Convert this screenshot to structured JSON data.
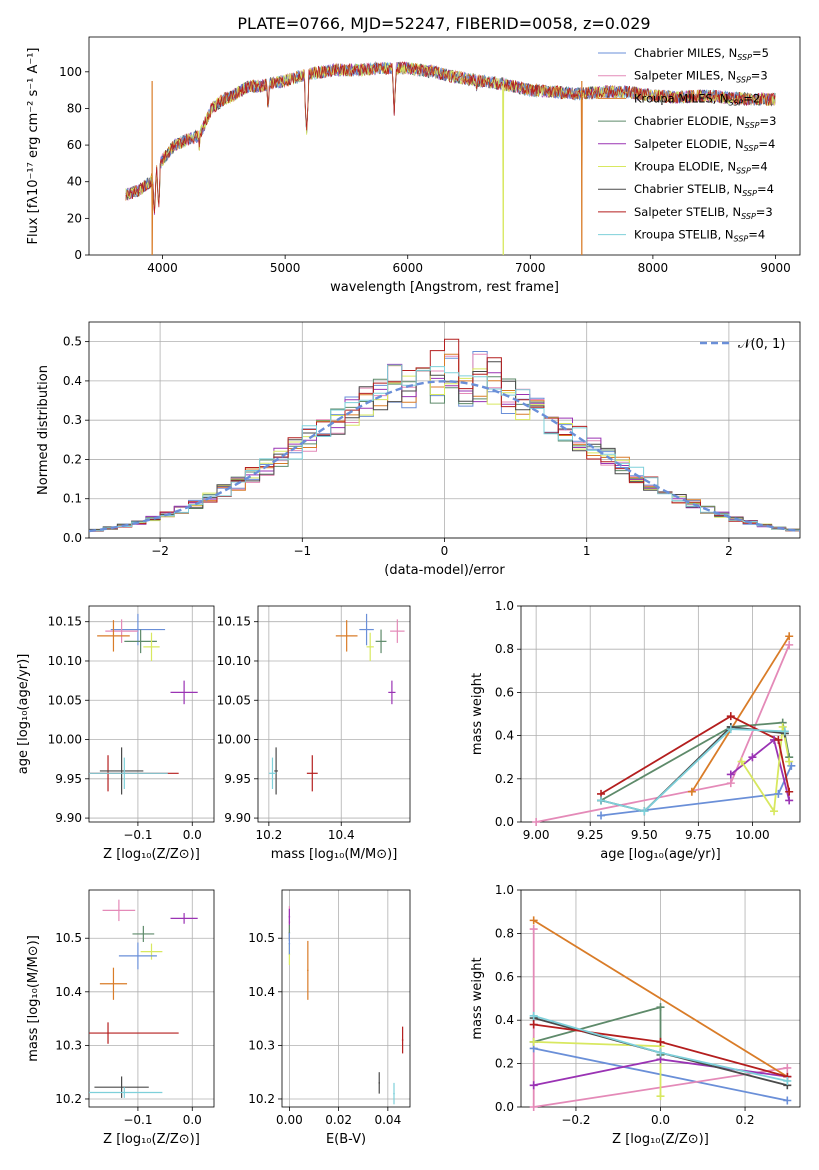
{
  "chart_data": [
    {
      "id": "spectrum",
      "type": "line",
      "title": "PLATE=0766, MJD=52247, FIBERID=0058, z=0.029",
      "xlabel": "wavelength [Angstrom, rest frame]",
      "ylabel": "Flux [fλ10⁻¹⁷ erg cm⁻² s⁻¹ A⁻¹]",
      "xlim": [
        3400,
        9200
      ],
      "ylim": [
        0,
        119
      ],
      "xticks": [
        4000,
        5000,
        6000,
        7000,
        8000,
        9000
      ],
      "yticks": [
        0,
        20,
        40,
        60,
        80,
        100
      ],
      "grid": false,
      "legend": "top-right",
      "legend_entries": [
        {
          "label": "Chabrier MILES, N",
          "sub": "SSP",
          "suffix": "=5",
          "color": "#6a8fd8"
        },
        {
          "label": "Salpeter MILES, N",
          "sub": "SSP",
          "suffix": "=3",
          "color": "#e48ab8"
        },
        {
          "label": "Kroupa MILES, N",
          "sub": "SSP",
          "suffix": "=2",
          "color": "#d97c28"
        },
        {
          "label": "Chabrier ELODIE, N",
          "sub": "SSP",
          "suffix": "=3",
          "color": "#5e8a6a"
        },
        {
          "label": "Salpeter ELODIE, N",
          "sub": "SSP",
          "suffix": "=4",
          "color": "#9a33b4"
        },
        {
          "label": "Kroupa ELODIE, N",
          "sub": "SSP",
          "suffix": "=4",
          "color": "#d8e860"
        },
        {
          "label": "Chabrier STELIB, N",
          "sub": "SSP",
          "suffix": "=4",
          "color": "#4a4a4a"
        },
        {
          "label": "Salpeter STELIB, N",
          "sub": "SSP",
          "suffix": "=3",
          "color": "#b41e1e"
        },
        {
          "label": "Kroupa STELIB, N",
          "sub": "SSP",
          "suffix": "=4",
          "color": "#7ed0da"
        }
      ],
      "continuum": {
        "x": [
          3700,
          3800,
          3900,
          4000,
          4100,
          4200,
          4300,
          4400,
          4500,
          4600,
          4700,
          4800,
          4900,
          5000,
          5200,
          5400,
          5600,
          5800,
          6000,
          6200,
          6400,
          6600,
          6800,
          7000,
          7200,
          7400,
          7600,
          7800,
          8000,
          8200,
          8400,
          8600,
          8800,
          9000
        ],
        "y": [
          33,
          35,
          40,
          52,
          60,
          63,
          65,
          80,
          85,
          88,
          92,
          92,
          94,
          95,
          99,
          101,
          101,
          102,
          102,
          100,
          97,
          95,
          93,
          90,
          89,
          88,
          89,
          89,
          87,
          86,
          87,
          86,
          85,
          85
        ]
      },
      "absorption_features": [
        {
          "x": 3933,
          "y": 22
        },
        {
          "x": 3968,
          "y": 25
        },
        {
          "x": 4300,
          "y": 58
        },
        {
          "x": 4340,
          "y": 68
        },
        {
          "x": 4861,
          "y": 78
        },
        {
          "x": 5175,
          "y": 66
        },
        {
          "x": 5890,
          "y": 78
        },
        {
          "x": 6563,
          "y": 88
        }
      ],
      "dropouts": [
        {
          "x": 3915,
          "y": 0,
          "series": "Kroupa MILES, N_SSP=2"
        },
        {
          "x": 6780,
          "y": 0,
          "series": "Kroupa ELODIE, N_SSP=4"
        },
        {
          "x": 7420,
          "y": 0,
          "series": "Kroupa MILES, N_SSP=2"
        }
      ]
    },
    {
      "id": "residuals",
      "type": "histogram",
      "xlabel": "(data-model)/error",
      "ylabel": "Normed distribution",
      "xlim": [
        -2.5,
        2.5
      ],
      "ylim": [
        0,
        0.55
      ],
      "xticks": [
        -2,
        -1,
        0,
        1,
        2
      ],
      "yticks": [
        0.0,
        0.1,
        0.2,
        0.3,
        0.4,
        0.5
      ],
      "grid": true,
      "legend": "top-right",
      "legend_label": "𝒩(0, 1)",
      "reference_curve": {
        "name": "𝒩(0, 1)",
        "color": "#6a8fd8",
        "style": "dashed"
      },
      "bin_width": 0.1
    },
    {
      "id": "age-vs-z",
      "type": "scatter",
      "xlabel": "Z [log₁₀(Z/Z⊙)]",
      "ylabel": "age  [log₁₀(age/yr)]",
      "xlim": [
        -0.19,
        0.04
      ],
      "ylim": [
        9.895,
        10.17
      ],
      "xticks": [
        -0.1,
        0.0
      ],
      "yticks": [
        9.9,
        9.95,
        10.0,
        10.05,
        10.1,
        10.15
      ],
      "grid": true,
      "points": [
        {
          "series": "Chabrier MILES",
          "x": -0.1,
          "y": 10.14,
          "xerr": 0.05,
          "yerr": 0.02,
          "color": "#6a8fd8"
        },
        {
          "series": "Salpeter MILES",
          "x": -0.13,
          "y": 10.138,
          "xerr": 0.03,
          "yerr": 0.015,
          "color": "#e48ab8"
        },
        {
          "series": "Kroupa MILES",
          "x": -0.145,
          "y": 10.132,
          "xerr": 0.03,
          "yerr": 0.02,
          "color": "#d97c28"
        },
        {
          "series": "Chabrier ELODIE",
          "x": -0.095,
          "y": 10.125,
          "xerr": 0.03,
          "yerr": 0.015,
          "color": "#5e8a6a"
        },
        {
          "series": "Kroupa ELODIE",
          "x": -0.075,
          "y": 10.118,
          "xerr": 0.015,
          "yerr": 0.018,
          "color": "#d8e860"
        },
        {
          "series": "Salpeter ELODIE",
          "x": -0.015,
          "y": 10.06,
          "xerr": 0.025,
          "yerr": 0.015,
          "color": "#9a33b4"
        },
        {
          "series": "Salpeter STELIB",
          "x": -0.155,
          "y": 9.957,
          "xerr": 0.13,
          "yerr": 0.023,
          "color": "#b41e1e"
        },
        {
          "series": "Chabrier STELIB",
          "x": -0.13,
          "y": 9.96,
          "xerr": 0.04,
          "yerr": 0.03,
          "color": "#4a4a4a"
        },
        {
          "series": "Kroupa STELIB",
          "x": -0.125,
          "y": 9.957,
          "xerr": 0.08,
          "yerr": 0.02,
          "color": "#7ed0da"
        }
      ]
    },
    {
      "id": "age-vs-mass",
      "type": "scatter",
      "xlabel": "mass [log₁₀(M/M⊙)]",
      "ylabel": "",
      "xlim": [
        10.17,
        10.59
      ],
      "ylim": [
        9.895,
        10.17
      ],
      "xticks": [
        10.2,
        10.4
      ],
      "yticks": [
        9.9,
        9.95,
        10.0,
        10.05,
        10.1,
        10.15
      ],
      "grid": true,
      "points": [
        {
          "series": "Chabrier MILES",
          "x": 10.47,
          "y": 10.14,
          "xerr": 0.02,
          "yerr": 0.02,
          "color": "#6a8fd8"
        },
        {
          "series": "Salpeter MILES",
          "x": 10.555,
          "y": 10.138,
          "xerr": 0.02,
          "yerr": 0.015,
          "color": "#e48ab8"
        },
        {
          "series": "Kroupa MILES",
          "x": 10.415,
          "y": 10.132,
          "xerr": 0.03,
          "yerr": 0.02,
          "color": "#d97c28"
        },
        {
          "series": "Chabrier ELODIE",
          "x": 10.51,
          "y": 10.125,
          "xerr": 0.015,
          "yerr": 0.015,
          "color": "#5e8a6a"
        },
        {
          "series": "Kroupa ELODIE",
          "x": 10.48,
          "y": 10.118,
          "xerr": 0.01,
          "yerr": 0.018,
          "color": "#d8e860"
        },
        {
          "series": "Salpeter ELODIE",
          "x": 10.54,
          "y": 10.06,
          "xerr": 0.01,
          "yerr": 0.015,
          "color": "#9a33b4"
        },
        {
          "series": "Salpeter STELIB",
          "x": 10.32,
          "y": 9.957,
          "xerr": 0.015,
          "yerr": 0.023,
          "color": "#b41e1e"
        },
        {
          "series": "Chabrier STELIB",
          "x": 10.22,
          "y": 9.96,
          "xerr": 0.005,
          "yerr": 0.03,
          "color": "#4a4a4a"
        },
        {
          "series": "Kroupa STELIB",
          "x": 10.21,
          "y": 9.957,
          "xerr": 0.01,
          "yerr": 0.02,
          "color": "#7ed0da"
        }
      ]
    },
    {
      "id": "massweight-vs-age",
      "type": "line",
      "xlabel": "age  [log₁₀(age/yr)]",
      "ylabel": "mass weight",
      "xlim": [
        8.93,
        10.22
      ],
      "ylim": [
        0,
        1.0
      ],
      "xticks": [
        9.0,
        9.25,
        9.5,
        9.75,
        10.0
      ],
      "yticks": [
        0.0,
        0.2,
        0.4,
        0.6,
        0.8,
        1.0
      ],
      "grid": true,
      "series": [
        {
          "name": "Chabrier MILES",
          "color": "#6a8fd8",
          "x": [
            9.3,
            10.12,
            10.18
          ],
          "y": [
            0.03,
            0.13,
            0.26
          ]
        },
        {
          "name": "Salpeter MILES",
          "color": "#e48ab8",
          "x": [
            9.0,
            9.9,
            10.17
          ],
          "y": [
            0.0,
            0.18,
            0.82
          ]
        },
        {
          "name": "Kroupa MILES",
          "color": "#d97c28",
          "x": [
            9.72,
            10.17
          ],
          "y": [
            0.14,
            0.86
          ]
        },
        {
          "name": "Chabrier ELODIE",
          "color": "#5e8a6a",
          "x": [
            9.3,
            9.9,
            10.14,
            10.17
          ],
          "y": [
            0.1,
            0.44,
            0.46,
            0.3
          ]
        },
        {
          "name": "Salpeter ELODIE",
          "color": "#9a33b4",
          "x": [
            9.9,
            10.0,
            10.1,
            10.17
          ],
          "y": [
            0.22,
            0.3,
            0.38,
            0.1
          ]
        },
        {
          "name": "Kroupa ELODIE",
          "color": "#d8e860",
          "x": [
            9.95,
            10.1,
            10.14,
            10.17
          ],
          "y": [
            0.28,
            0.05,
            0.44,
            0.28
          ]
        },
        {
          "name": "Chabrier STELIB",
          "color": "#4a4a4a",
          "x": [
            9.3,
            9.5,
            9.9,
            10.15
          ],
          "y": [
            0.1,
            0.05,
            0.44,
            0.41
          ]
        },
        {
          "name": "Salpeter STELIB",
          "color": "#b41e1e",
          "x": [
            9.3,
            9.9,
            10.12,
            10.17
          ],
          "y": [
            0.13,
            0.49,
            0.38,
            0.14
          ]
        },
        {
          "name": "Kroupa STELIB",
          "color": "#7ed0da",
          "x": [
            9.3,
            9.5,
            9.9,
            10.15
          ],
          "y": [
            0.1,
            0.05,
            0.43,
            0.42
          ]
        }
      ]
    },
    {
      "id": "mass-vs-z",
      "type": "scatter",
      "xlabel": "Z [log₁₀(Z/Z⊙)]",
      "ylabel": "mass [log₁₀(M/M⊙)]",
      "xlim": [
        -0.19,
        0.04
      ],
      "ylim": [
        10.185,
        10.59
      ],
      "xticks": [
        -0.1,
        0.0
      ],
      "yticks": [
        10.2,
        10.3,
        10.4,
        10.5
      ],
      "grid": true,
      "points": [
        {
          "series": "Salpeter MILES",
          "x": -0.135,
          "y": 10.552,
          "xerr": 0.03,
          "yerr": 0.02,
          "color": "#e48ab8"
        },
        {
          "series": "Salpeter ELODIE",
          "x": -0.015,
          "y": 10.537,
          "xerr": 0.025,
          "yerr": 0.01,
          "color": "#9a33b4"
        },
        {
          "series": "Chabrier ELODIE",
          "x": -0.09,
          "y": 10.508,
          "xerr": 0.02,
          "yerr": 0.015,
          "color": "#5e8a6a"
        },
        {
          "series": "Kroupa ELODIE",
          "x": -0.075,
          "y": 10.475,
          "xerr": 0.02,
          "yerr": 0.015,
          "color": "#d8e860"
        },
        {
          "series": "Chabrier MILES",
          "x": -0.1,
          "y": 10.467,
          "xerr": 0.035,
          "yerr": 0.025,
          "color": "#6a8fd8"
        },
        {
          "series": "Kroupa MILES",
          "x": -0.145,
          "y": 10.415,
          "xerr": 0.025,
          "yerr": 0.03,
          "color": "#d97c28"
        },
        {
          "series": "Salpeter STELIB",
          "x": -0.155,
          "y": 10.323,
          "xerr": 0.13,
          "yerr": 0.02,
          "color": "#b41e1e"
        },
        {
          "series": "Chabrier STELIB",
          "x": -0.13,
          "y": 10.222,
          "xerr": 0.05,
          "yerr": 0.02,
          "color": "#4a4a4a"
        },
        {
          "series": "Kroupa STELIB",
          "x": -0.125,
          "y": 10.212,
          "xerr": 0.07,
          "yerr": 0.01,
          "color": "#7ed0da"
        }
      ]
    },
    {
      "id": "mass-vs-ebv",
      "type": "scatter",
      "xlabel": "E(B-V)",
      "ylabel": "",
      "xlim": [
        -0.003,
        0.049
      ],
      "ylim": [
        10.185,
        10.59
      ],
      "xticks": [
        0.0,
        0.02,
        0.04
      ],
      "yticks": [
        10.2,
        10.3,
        10.4,
        10.5
      ],
      "grid": true,
      "points": [
        {
          "series": "Salpeter MILES",
          "x": 0.0,
          "y": 10.53,
          "xerr": 0.0003,
          "yerr": 0.03,
          "color": "#e48ab8"
        },
        {
          "series": "Salpeter ELODIE",
          "x": 0.0,
          "y": 10.54,
          "xerr": 0.0003,
          "yerr": 0.015,
          "color": "#9a33b4"
        },
        {
          "series": "Chabrier ELODIE",
          "x": 0.0,
          "y": 10.51,
          "xerr": 0.0003,
          "yerr": 0.015,
          "color": "#5e8a6a"
        },
        {
          "series": "Kroupa ELODIE",
          "x": 0.0,
          "y": 10.47,
          "xerr": 0.0003,
          "yerr": 0.02,
          "color": "#d8e860"
        },
        {
          "series": "Chabrier MILES",
          "x": 0.0,
          "y": 10.49,
          "xerr": 0.0003,
          "yerr": 0.02,
          "color": "#6a8fd8"
        },
        {
          "series": "Kroupa MILES",
          "x": 0.0075,
          "y": 10.44,
          "xerr": 0.0003,
          "yerr": 0.055,
          "color": "#d97c28"
        },
        {
          "series": "Salpeter STELIB",
          "x": 0.046,
          "y": 10.31,
          "xerr": 0.0003,
          "yerr": 0.025,
          "color": "#b41e1e"
        },
        {
          "series": "Chabrier STELIB",
          "x": 0.0365,
          "y": 10.23,
          "xerr": 0.0003,
          "yerr": 0.02,
          "color": "#4a4a4a"
        },
        {
          "series": "Kroupa STELIB",
          "x": 0.0425,
          "y": 10.21,
          "xerr": 0.0003,
          "yerr": 0.02,
          "color": "#7ed0da"
        }
      ]
    },
    {
      "id": "massweight-vs-z",
      "type": "line",
      "xlabel": "Z [log₁₀(Z/Z⊙)]",
      "ylabel": "mass weight",
      "xlim": [
        -0.33,
        0.33
      ],
      "ylim": [
        0,
        1.0
      ],
      "xticks": [
        -0.2,
        0.0,
        0.2
      ],
      "yticks": [
        0.0,
        0.2,
        0.4,
        0.6,
        0.8,
        1.0
      ],
      "grid": true,
      "series": [
        {
          "name": "Chabrier MILES",
          "color": "#6a8fd8",
          "x": [
            -0.3,
            0.3
          ],
          "y": [
            0.27,
            0.03
          ]
        },
        {
          "name": "Salpeter MILES",
          "color": "#e48ab8",
          "x": [
            -0.3,
            -0.3,
            0.3
          ],
          "y": [
            0.82,
            0.0,
            0.18
          ]
        },
        {
          "name": "Kroupa MILES",
          "color": "#d97c28",
          "x": [
            -0.3,
            0.3
          ],
          "y": [
            0.86,
            0.14
          ]
        },
        {
          "name": "Chabrier ELODIE",
          "color": "#5e8a6a",
          "x": [
            -0.3,
            0.0,
            0.0
          ],
          "y": [
            0.3,
            0.46,
            0.24
          ]
        },
        {
          "name": "Salpeter ELODIE",
          "color": "#9a33b4",
          "x": [
            -0.3,
            0.0,
            0.3
          ],
          "y": [
            0.1,
            0.22,
            0.14
          ]
        },
        {
          "name": "Kroupa ELODIE",
          "color": "#d8e860",
          "x": [
            -0.3,
            0.0,
            0.0
          ],
          "y": [
            0.3,
            0.28,
            0.05
          ]
        },
        {
          "name": "Chabrier STELIB",
          "color": "#4a4a4a",
          "x": [
            -0.3,
            0.0,
            0.3
          ],
          "y": [
            0.41,
            0.25,
            0.1
          ]
        },
        {
          "name": "Salpeter STELIB",
          "color": "#b41e1e",
          "x": [
            -0.3,
            0.0,
            0.3
          ],
          "y": [
            0.38,
            0.3,
            0.14
          ]
        },
        {
          "name": "Kroupa STELIB",
          "color": "#7ed0da",
          "x": [
            -0.3,
            0.0,
            0.3
          ],
          "y": [
            0.42,
            0.25,
            0.12
          ]
        }
      ]
    }
  ]
}
